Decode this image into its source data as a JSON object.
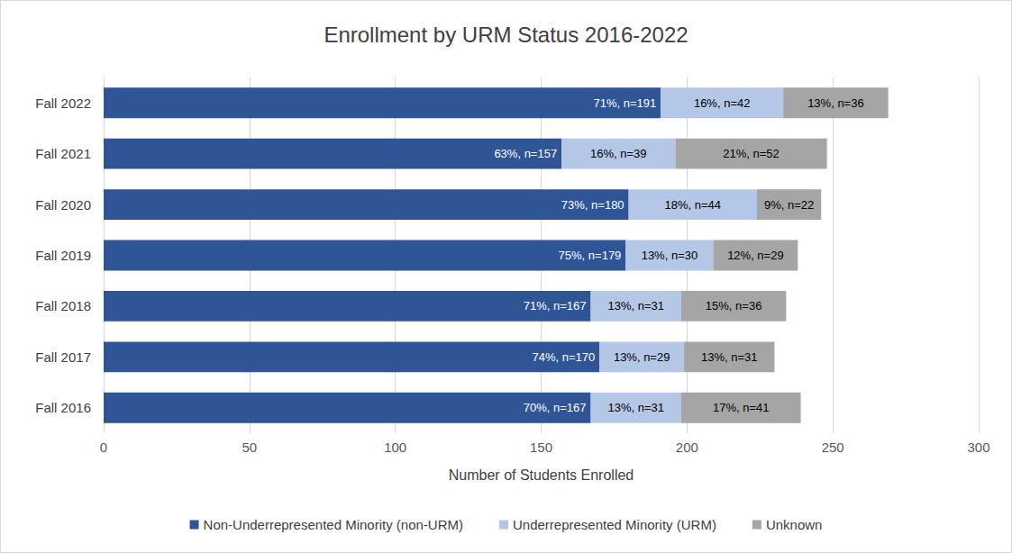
{
  "chart_data": {
    "type": "bar",
    "title": "Enrollment by URM Status 2016-2022",
    "x_label": "Number of Students Enrolled",
    "orientation": "horizontal",
    "stacked": true,
    "data_labels": true,
    "grid": true,
    "legend": "bottom",
    "categories": [
      "Fall 2016",
      "Fall 2017",
      "Fall 2018",
      "Fall 2019",
      "Fall 2020",
      "Fall 2021",
      "Fall 2022"
    ],
    "xlim": [
      0,
      300
    ],
    "xticks": [
      0,
      50,
      100,
      150,
      200,
      250,
      300
    ],
    "series": [
      {
        "name": "Non-Underrepresented Minority (non-URM)",
        "color": "#2f5597",
        "values": [
          167,
          170,
          167,
          179,
          180,
          157,
          191
        ],
        "value_labels": [
          "70%, n=167",
          "74%, n=170",
          "71%, n=167",
          "75%, n=179",
          "73%, n=180",
          "63%, n=157",
          "71%, n=191"
        ]
      },
      {
        "name": "Underrepresented Minority (URM)",
        "color": "#b4c7e7",
        "values": [
          31,
          29,
          31,
          30,
          44,
          39,
          42
        ],
        "value_labels": [
          "13%, n=31",
          "13%, n=29",
          "13%, n=31",
          "13%, n=30",
          "18%, n=44",
          "16%, n=39",
          "16%, n=42"
        ]
      },
      {
        "name": "Unknown",
        "color": "#a5a5a5",
        "values": [
          41,
          31,
          36,
          29,
          22,
          52,
          36
        ],
        "value_labels": [
          "17%, n=41",
          "13%, n=31",
          "15%, n=36",
          "12%, n=29",
          "9%, n=22",
          "21%, n=52",
          "13%, n=36"
        ]
      }
    ]
  }
}
